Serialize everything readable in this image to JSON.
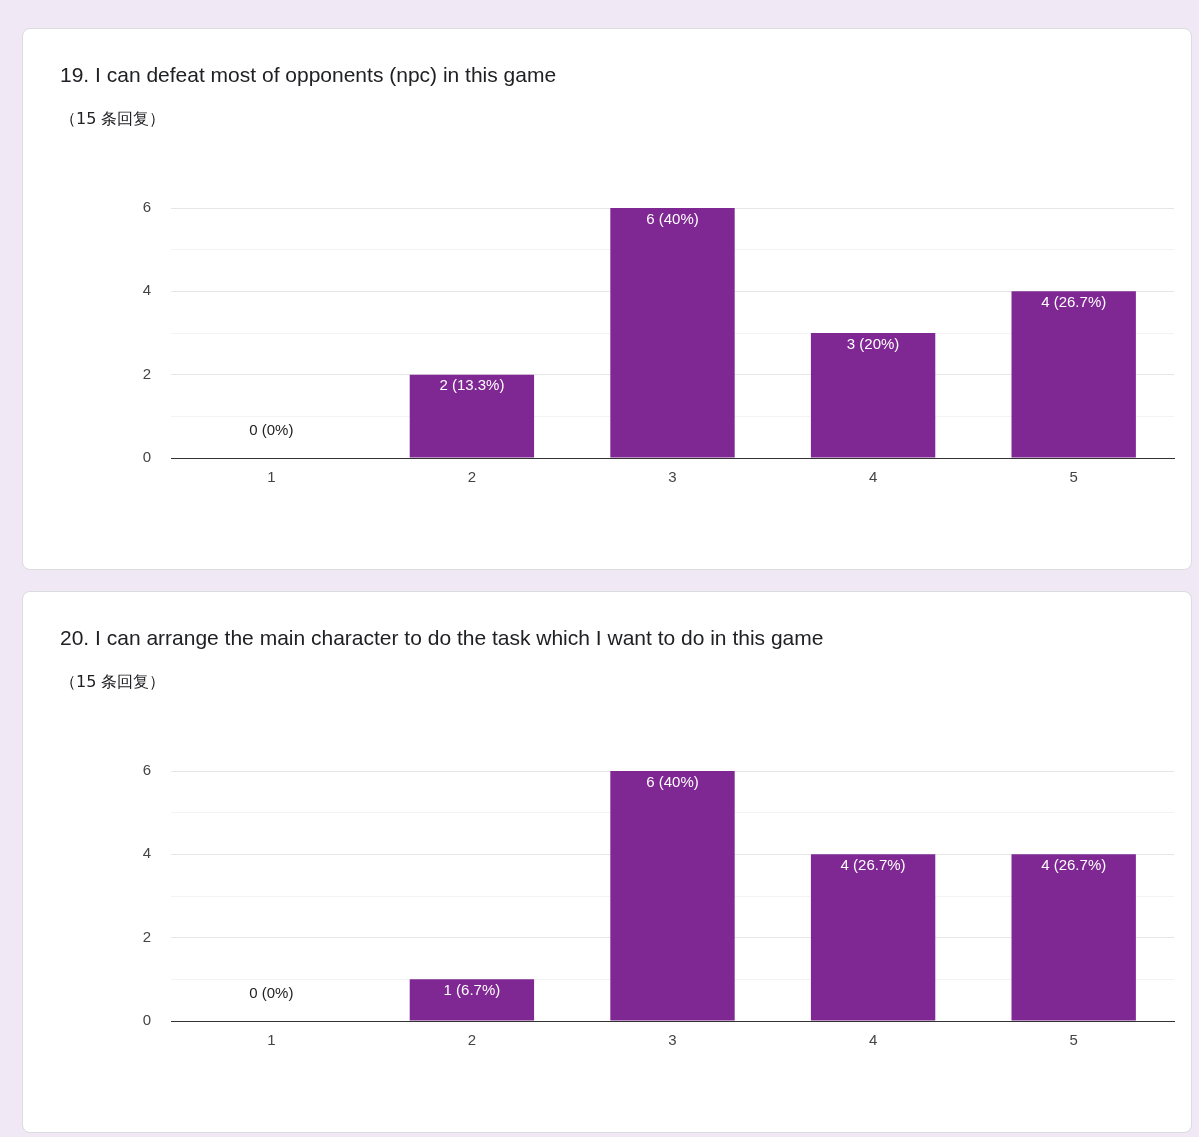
{
  "chart_data": [
    {
      "type": "bar",
      "title": "19. I can defeat most of opponents (npc) in this game",
      "subtitle": "（15 条回复）",
      "categories": [
        "1",
        "2",
        "3",
        "4",
        "5"
      ],
      "values": [
        0,
        2,
        6,
        3,
        4
      ],
      "color": "#7f2793",
      "ylim": [
        0,
        6
      ],
      "yticks": [
        0,
        {
          "value": 1,
          "label": null
        },
        2,
        {
          "value": 3,
          "label": null
        },
        4,
        {
          "value": 5,
          "label": null
        },
        6
      ],
      "grid": "y",
      "value_labels": [
        "0 (0%)",
        "2 (13.3%)",
        "6 (40%)",
        "3 (20%)",
        "4 (26.7%)"
      ]
    },
    {
      "type": "bar",
      "title": "20. I can arrange the main character to do the task which I want to do in this game",
      "subtitle": "（15 条回复）",
      "categories": [
        "1",
        "2",
        "3",
        "4",
        "5"
      ],
      "values": [
        0,
        1,
        6,
        4,
        4
      ],
      "color": "#7f2793",
      "ylim": [
        0,
        6
      ],
      "yticks": [
        0,
        {
          "value": 1,
          "label": null
        },
        2,
        {
          "value": 3,
          "label": null
        },
        4,
        {
          "value": 5,
          "label": null
        },
        6
      ],
      "grid": "y",
      "value_labels": [
        "0 (0%)",
        "1 (6.7%)",
        "6 (40%)",
        "4 (26.7%)",
        "4 (26.7%)"
      ]
    }
  ]
}
